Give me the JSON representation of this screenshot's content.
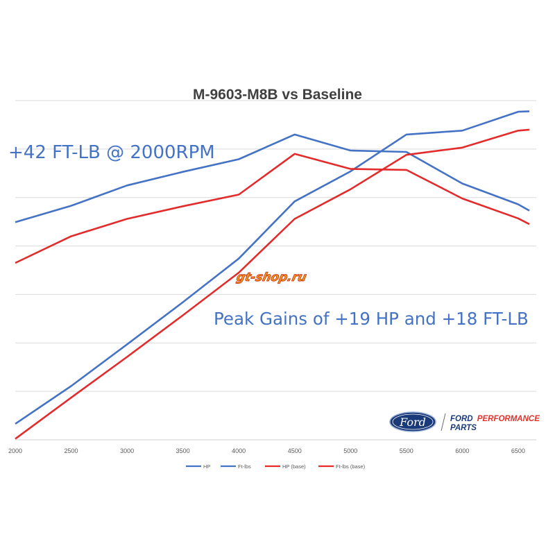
{
  "chart_data": {
    "type": "line",
    "title": "M-9603-M8B vs Baseline",
    "xlabel": "",
    "ylabel": "",
    "x": [
      2000,
      2500,
      3000,
      3500,
      4000,
      4500,
      5000,
      5500,
      6000,
      6500,
      6600
    ],
    "xlim": [
      2000,
      6600
    ],
    "xticks": [
      2000,
      2500,
      3000,
      3500,
      4000,
      4500,
      5000,
      5500,
      6000,
      6500
    ],
    "ylim": [
      0,
      7
    ],
    "grid": true,
    "legend_position": "bottom",
    "series": [
      {
        "name": "HP",
        "color": "#4472c4",
        "values": [
          0.33,
          1.11,
          1.97,
          2.84,
          3.74,
          4.92,
          5.54,
          6.3,
          6.38,
          6.77,
          6.78
        ]
      },
      {
        "name": "Ft-lbs",
        "color": "#4472c4",
        "values": [
          4.49,
          4.83,
          5.25,
          5.53,
          5.79,
          6.3,
          5.97,
          5.94,
          5.29,
          4.86,
          4.73
        ]
      },
      {
        "name": "HP (base)",
        "color": "#e32b2b",
        "values": [
          0.02,
          0.87,
          1.71,
          2.57,
          3.45,
          4.56,
          5.17,
          5.88,
          6.03,
          6.38,
          6.4
        ]
      },
      {
        "name": "Ft-lbs (base)",
        "color": "#e32b2b",
        "values": [
          3.65,
          4.2,
          4.56,
          4.82,
          5.06,
          5.9,
          5.59,
          5.57,
          4.98,
          4.57,
          4.45
        ]
      }
    ],
    "annotations": [
      "+42 FT-LB @ 2000RPM",
      "Peak Gains of +19 HP and +18 FT-LB"
    ]
  },
  "branding": {
    "ford_oval": "Ford",
    "ford_line1": "FORD",
    "ford_line1_accent": "PERFORMANCE",
    "ford_line2": "PARTS",
    "watermark": "gt-shop.ru"
  },
  "colors": {
    "blue": "#4472c4",
    "red": "#e32b2b",
    "grid": "#d9d9d9",
    "ford_navy": "#1a3a7a",
    "ford_red": "#e0312b"
  }
}
